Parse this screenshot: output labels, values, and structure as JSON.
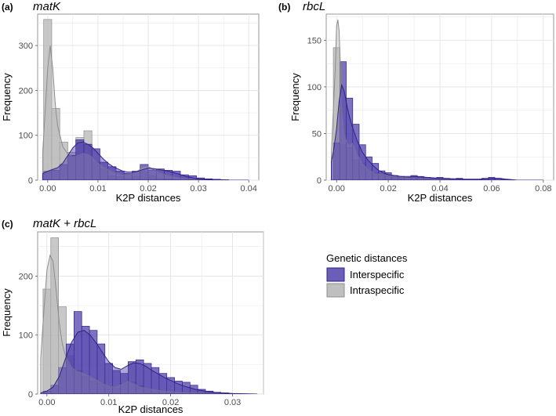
{
  "legend": {
    "title": "Genetic distances",
    "items": [
      {
        "name": "Interspecific",
        "fill": "#4b3aa8",
        "edge": "#2e2386"
      },
      {
        "name": "Intraspecific",
        "fill": "#b8b8b8",
        "edge": "#8c8c8c"
      }
    ]
  },
  "colors": {
    "inter_fill": "#4b3aa8",
    "inter_edge": "#2e2386",
    "intra_fill": "#b8b8b8",
    "intra_edge": "#8c8c8c",
    "panel_bg": "#ffffff",
    "grid": "#e3e3e3"
  },
  "chart_data": [
    {
      "id": "a",
      "panel_label": "(a)",
      "title": "matK",
      "type": "bar",
      "xlabel": "K2P distances",
      "ylabel": "Frequency",
      "xlim": [
        -0.002,
        0.042
      ],
      "ylim": [
        0,
        370
      ],
      "xticks": [
        0.0,
        0.01,
        0.02,
        0.03,
        0.04
      ],
      "xtick_labels": [
        "0.00",
        "0.01",
        "0.02",
        "0.03",
        "0.04"
      ],
      "yticks": [
        0,
        100,
        200,
        300
      ],
      "ytick_labels": [
        "0",
        "100",
        "200",
        "300"
      ],
      "bin_width": 0.0016,
      "series": [
        {
          "name": "Intraspecific",
          "bin_centers": [
            0.0,
            0.0016,
            0.0032,
            0.0048,
            0.0064,
            0.008,
            0.0096,
            0.0112,
            0.0128,
            0.0144,
            0.016,
            0.0176,
            0.0192,
            0.0208,
            0.0224,
            0.024,
            0.0256
          ],
          "values": [
            358,
            160,
            85,
            62,
            95,
            110,
            40,
            25,
            10,
            8,
            5,
            8,
            18,
            10,
            5,
            3,
            2
          ]
        },
        {
          "name": "Interspecific",
          "bin_centers": [
            0.0,
            0.0016,
            0.0032,
            0.0048,
            0.0064,
            0.008,
            0.0096,
            0.0112,
            0.0128,
            0.0144,
            0.016,
            0.0176,
            0.0192,
            0.0208,
            0.0224,
            0.024,
            0.0256,
            0.0272,
            0.0288,
            0.0304,
            0.032,
            0.0336,
            0.0352
          ],
          "values": [
            20,
            22,
            35,
            55,
            90,
            80,
            70,
            40,
            30,
            20,
            15,
            20,
            35,
            22,
            25,
            22,
            20,
            12,
            10,
            5,
            3,
            2,
            1
          ]
        }
      ],
      "density": [
        {
          "name": "Intraspecific",
          "x": [
            -0.001,
            0.0,
            0.0005,
            0.001,
            0.0015,
            0.002,
            0.003,
            0.004,
            0.005,
            0.006,
            0.007,
            0.008,
            0.009,
            0.01,
            0.011,
            0.012,
            0.013,
            0.015,
            0.017,
            0.019,
            0.02,
            0.021,
            0.023,
            0.025,
            0.027,
            0.03,
            0.035,
            0.04
          ],
          "y": [
            60,
            250,
            300,
            250,
            170,
            120,
            75,
            58,
            52,
            55,
            60,
            58,
            50,
            38,
            30,
            24,
            18,
            12,
            15,
            28,
            30,
            24,
            14,
            8,
            4,
            1,
            0,
            0
          ]
        },
        {
          "name": "Interspecific",
          "x": [
            -0.001,
            0.0,
            0.001,
            0.002,
            0.003,
            0.004,
            0.005,
            0.006,
            0.007,
            0.008,
            0.009,
            0.01,
            0.011,
            0.012,
            0.013,
            0.014,
            0.015,
            0.016,
            0.017,
            0.018,
            0.019,
            0.02,
            0.021,
            0.022,
            0.023,
            0.024,
            0.025,
            0.026,
            0.027,
            0.028,
            0.029,
            0.03,
            0.032,
            0.034,
            0.036,
            0.04
          ],
          "y": [
            15,
            20,
            24,
            28,
            38,
            55,
            72,
            83,
            85,
            80,
            72,
            60,
            48,
            38,
            30,
            25,
            20,
            18,
            18,
            20,
            24,
            27,
            26,
            24,
            22,
            20,
            17,
            14,
            10,
            7,
            5,
            3,
            2,
            1,
            0,
            0
          ]
        }
      ]
    },
    {
      "id": "b",
      "panel_label": "(b)",
      "title": "rbcL",
      "type": "bar",
      "xlabel": "K2P distances",
      "ylabel": "Frequency",
      "xlim": [
        -0.004,
        0.084
      ],
      "ylim": [
        0,
        178
      ],
      "xticks": [
        0.0,
        0.02,
        0.04,
        0.06,
        0.08
      ],
      "xtick_labels": [
        "0.00",
        "0.02",
        "0.04",
        "0.06",
        "0.08"
      ],
      "yticks": [
        0,
        50,
        100,
        150
      ],
      "ytick_labels": [
        "0",
        "50",
        "100",
        "150"
      ],
      "bin_width": 0.0025,
      "series": [
        {
          "name": "Intraspecific",
          "bin_centers": [
            0.0,
            0.0025,
            0.005,
            0.0075,
            0.01,
            0.0125,
            0.015,
            0.0175,
            0.02,
            0.0225,
            0.025,
            0.03,
            0.035,
            0.04,
            0.045
          ],
          "values": [
            142,
            38,
            35,
            22,
            18,
            10,
            8,
            5,
            4,
            3,
            2,
            2,
            1,
            1,
            1
          ]
        },
        {
          "name": "Interspecific",
          "bin_centers": [
            0.0,
            0.0025,
            0.005,
            0.0075,
            0.01,
            0.0125,
            0.015,
            0.0175,
            0.02,
            0.0225,
            0.025,
            0.0275,
            0.03,
            0.0325,
            0.035,
            0.0375,
            0.04,
            0.0425,
            0.045,
            0.0475,
            0.05,
            0.0525,
            0.055,
            0.0575,
            0.06,
            0.0625,
            0.065
          ],
          "values": [
            40,
            127,
            88,
            60,
            38,
            25,
            18,
            10,
            8,
            5,
            4,
            3,
            5,
            4,
            3,
            2,
            3,
            2,
            1,
            2,
            1,
            1,
            1,
            2,
            3,
            2,
            1
          ]
        }
      ],
      "density": [
        {
          "name": "Intraspecific",
          "x": [
            -0.002,
            -0.0005,
            0.0,
            0.0005,
            0.001,
            0.0015,
            0.002,
            0.003,
            0.004,
            0.005,
            0.006,
            0.007,
            0.008,
            0.01,
            0.012,
            0.015,
            0.018,
            0.02,
            0.025,
            0.03,
            0.04,
            0.05,
            0.08
          ],
          "y": [
            30,
            120,
            165,
            172,
            160,
            120,
            80,
            50,
            40,
            38,
            40,
            36,
            28,
            18,
            12,
            7,
            6,
            5,
            3,
            2,
            1,
            0,
            0
          ]
        },
        {
          "name": "Interspecific",
          "x": [
            -0.002,
            -0.001,
            0.0,
            0.001,
            0.002,
            0.003,
            0.004,
            0.005,
            0.006,
            0.007,
            0.008,
            0.01,
            0.012,
            0.014,
            0.016,
            0.018,
            0.02,
            0.025,
            0.03,
            0.035,
            0.04,
            0.05,
            0.055,
            0.06,
            0.063,
            0.066,
            0.07,
            0.08
          ],
          "y": [
            20,
            35,
            55,
            85,
            102,
            95,
            80,
            68,
            58,
            50,
            42,
            30,
            22,
            16,
            11,
            8,
            6,
            4,
            4,
            3,
            2,
            1,
            1,
            2,
            2,
            1,
            0,
            0
          ]
        }
      ]
    },
    {
      "id": "c",
      "panel_label": "(c)",
      "title": "matK + rbcL",
      "type": "bar",
      "xlabel": "K2P distances",
      "ylabel": "Frequency",
      "xlim": [
        -0.0015,
        0.035
      ],
      "ylim": [
        0,
        275
      ],
      "xticks": [
        0.0,
        0.01,
        0.02,
        0.03
      ],
      "xtick_labels": [
        "0.00",
        "0.01",
        "0.02",
        "0.03"
      ],
      "yticks": [
        0,
        100,
        200
      ],
      "ytick_labels": [
        "0",
        "100",
        "200"
      ],
      "bin_width": 0.00125,
      "series": [
        {
          "name": "Intraspecific",
          "bin_centers": [
            0.0,
            0.00125,
            0.0025,
            0.00375,
            0.005,
            0.00625,
            0.0075,
            0.00875,
            0.01,
            0.01125,
            0.0125,
            0.01375,
            0.015,
            0.01625,
            0.0175,
            0.01875,
            0.02
          ],
          "values": [
            178,
            265,
            148,
            65,
            40,
            30,
            22,
            18,
            12,
            10,
            18,
            20,
            14,
            8,
            5,
            3,
            2
          ]
        },
        {
          "name": "Interspecific",
          "bin_centers": [
            0.0,
            0.00125,
            0.0025,
            0.00375,
            0.005,
            0.00625,
            0.0075,
            0.00875,
            0.01,
            0.01125,
            0.0125,
            0.01375,
            0.015,
            0.01625,
            0.0175,
            0.01875,
            0.02,
            0.02125,
            0.0225,
            0.02375,
            0.025,
            0.02625,
            0.0275,
            0.02875
          ],
          "values": [
            5,
            15,
            45,
            85,
            140,
            115,
            108,
            85,
            52,
            40,
            35,
            55,
            58,
            52,
            45,
            35,
            28,
            22,
            20,
            15,
            8,
            5,
            3,
            2
          ]
        }
      ],
      "density": [
        {
          "name": "Intraspecific",
          "x": [
            -0.001,
            -0.0005,
            0.0,
            0.0005,
            0.001,
            0.0015,
            0.002,
            0.0025,
            0.003,
            0.004,
            0.005,
            0.006,
            0.007,
            0.008,
            0.009,
            0.01,
            0.011,
            0.012,
            0.013,
            0.014,
            0.015,
            0.017,
            0.019,
            0.022,
            0.026,
            0.03,
            0.034
          ],
          "y": [
            60,
            140,
            210,
            235,
            225,
            175,
            120,
            85,
            65,
            45,
            38,
            35,
            30,
            24,
            18,
            14,
            12,
            16,
            22,
            18,
            12,
            8,
            5,
            3,
            1,
            0,
            0
          ]
        },
        {
          "name": "Interspecific",
          "x": [
            -0.001,
            0.0,
            0.001,
            0.002,
            0.003,
            0.004,
            0.005,
            0.006,
            0.007,
            0.008,
            0.009,
            0.01,
            0.011,
            0.012,
            0.013,
            0.014,
            0.015,
            0.016,
            0.017,
            0.018,
            0.019,
            0.02,
            0.021,
            0.022,
            0.023,
            0.024,
            0.025,
            0.026,
            0.027,
            0.028,
            0.03,
            0.034
          ],
          "y": [
            2,
            5,
            12,
            30,
            60,
            88,
            105,
            108,
            100,
            86,
            70,
            55,
            45,
            42,
            48,
            53,
            52,
            47,
            40,
            34,
            28,
            23,
            18,
            14,
            11,
            8,
            6,
            4,
            3,
            2,
            1,
            0
          ]
        }
      ]
    }
  ]
}
